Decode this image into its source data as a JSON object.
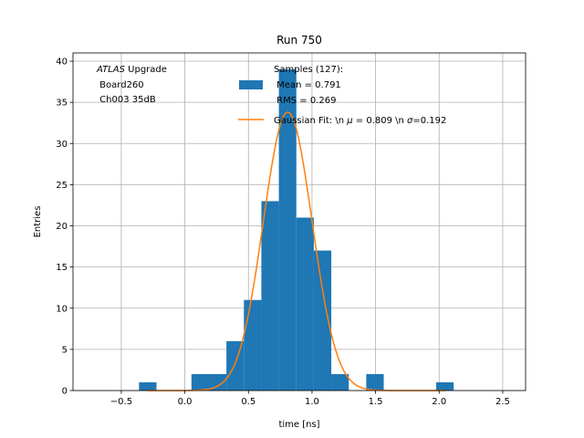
{
  "chart_data": {
    "type": "bar",
    "title": "Run 750",
    "xlabel": "time [ns]",
    "ylabel": "Entries",
    "xlim": [
      -0.88,
      2.68
    ],
    "ylim": [
      0,
      41
    ],
    "x_ticks": [
      -0.5,
      0.0,
      0.5,
      1.0,
      1.5,
      2.0,
      2.5
    ],
    "x_tick_labels": [
      "−0.5",
      "0.0",
      "0.5",
      "1.0",
      "1.5",
      "2.0",
      "2.5"
    ],
    "y_ticks": [
      0,
      5,
      10,
      15,
      20,
      25,
      30,
      35,
      40
    ],
    "y_tick_labels": [
      "0",
      "5",
      "10",
      "15",
      "20",
      "25",
      "30",
      "35",
      "40"
    ],
    "grid": true,
    "legend_location": "upper right",
    "annotation": {
      "italic": "ATLAS",
      "rest": " Upgrade",
      "line2": " Board260",
      "line3": " Ch003 35dB"
    },
    "series": [
      {
        "type": "histogram",
        "legend_lines": [
          "Samples (127):",
          " Mean = 0.791",
          " RMS = 0.269"
        ],
        "color": "#1f77b4",
        "bin_width": 0.1375,
        "bins": [
          {
            "left": -0.3608,
            "count": 1
          },
          {
            "left": 0.0517,
            "count": 2
          },
          {
            "left": 0.1892,
            "count": 2
          },
          {
            "left": 0.3267,
            "count": 6
          },
          {
            "left": 0.4642,
            "count": 11
          },
          {
            "left": 0.6017,
            "count": 23
          },
          {
            "left": 0.7392,
            "count": 39
          },
          {
            "left": 0.8767,
            "count": 21
          },
          {
            "left": 1.0142,
            "count": 17
          },
          {
            "left": 1.1517,
            "count": 2
          },
          {
            "left": 1.4267,
            "count": 2
          },
          {
            "left": 1.9767,
            "count": 1
          }
        ]
      },
      {
        "type": "line",
        "legend_text": "Gaussian Fit: \\n $\\mu$ = 0.809 \\n $\\sigma$=0.192",
        "legend_parts": [
          "Gaussian Fit: \\n ",
          "μ",
          " = 0.809 \\n ",
          "σ",
          "=0.192"
        ],
        "color": "#ff7f0e",
        "function": "gaussian",
        "amplitude": 33.8,
        "mu": 0.809,
        "sigma": 0.192,
        "x_range": [
          -0.3,
          2.05
        ]
      }
    ]
  }
}
